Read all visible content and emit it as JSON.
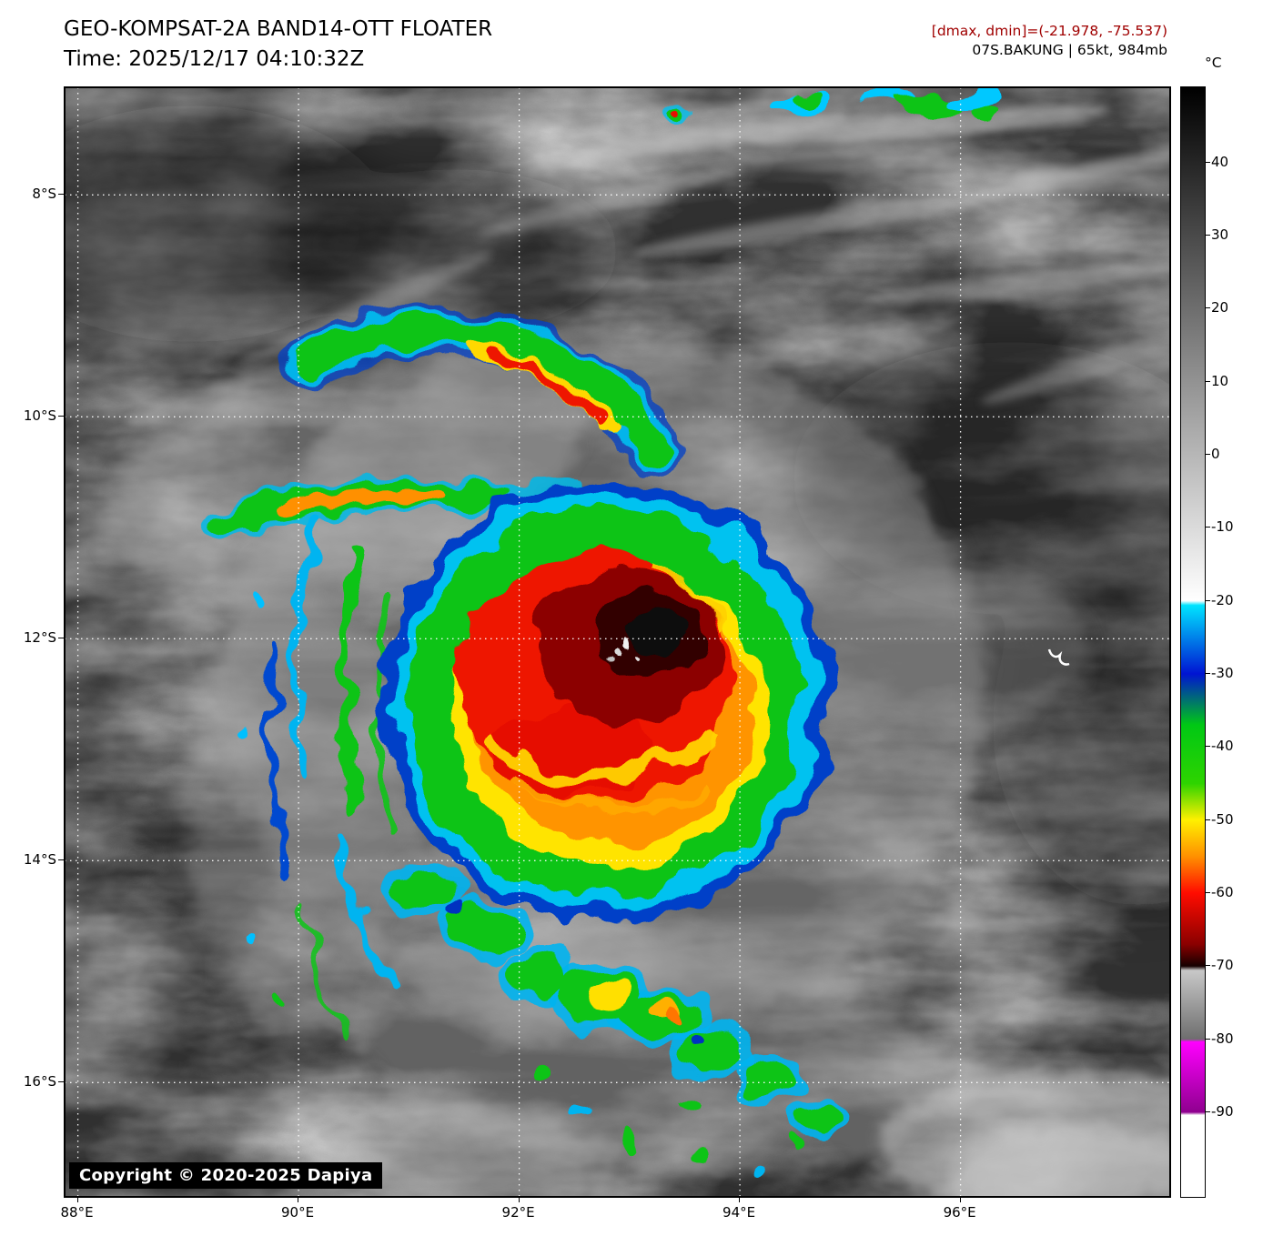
{
  "header": {
    "title": "GEO-KOMPSAT-2A BAND14-OTT FLOATER",
    "timestamp": "Time: 2025/12/17 04:10:32Z",
    "dmax_dmin": "[dmax, dmin]=(-21.978, -75.537)",
    "dmax_dmin_color": "#a00000",
    "storm_info": "07S.BAKUNG | 65kt, 984mb"
  },
  "colorbar": {
    "unit_label": "°C",
    "tick_values": [
      40,
      30,
      20,
      10,
      0,
      -10,
      -20,
      -30,
      -40,
      -50,
      -60,
      -70,
      -80,
      -90
    ],
    "value_max": 50.3,
    "value_min": -101.6,
    "gradient_stops": [
      {
        "value": 50.3,
        "color": "#000000"
      },
      {
        "value": -20,
        "color": "#ffffff"
      },
      {
        "value": -20.6,
        "color": "#00e4ff"
      },
      {
        "value": -30,
        "color": "#0014d2"
      },
      {
        "value": -37,
        "color": "#00c814"
      },
      {
        "value": -45,
        "color": "#2ed400"
      },
      {
        "value": -50,
        "color": "#fff000"
      },
      {
        "value": -55,
        "color": "#ff9000"
      },
      {
        "value": -60,
        "color": "#ff0c00"
      },
      {
        "value": -67,
        "color": "#8b0000"
      },
      {
        "value": -70,
        "color": "#160000"
      },
      {
        "value": -70.6,
        "color": "#c8c8c8"
      },
      {
        "value": -80,
        "color": "#6e6e6e"
      },
      {
        "value": -80.4,
        "color": "#ff00ff"
      },
      {
        "value": -90,
        "color": "#8f008f"
      },
      {
        "value": -90.4,
        "color": "#ffffff"
      },
      {
        "value": -101.6,
        "color": "#ffffff"
      }
    ]
  },
  "axes": {
    "lat_ticks": [
      {
        "value": 8,
        "label": "8°S"
      },
      {
        "value": 10,
        "label": "10°S"
      },
      {
        "value": 12,
        "label": "12°S"
      },
      {
        "value": 14,
        "label": "14°S"
      },
      {
        "value": 16,
        "label": "16°S"
      }
    ],
    "lon_ticks": [
      {
        "value": 88,
        "label": "88°E"
      },
      {
        "value": 90,
        "label": "90°E"
      },
      {
        "value": 92,
        "label": "92°E"
      },
      {
        "value": 94,
        "label": "94°E"
      },
      {
        "value": 96,
        "label": "96°E"
      }
    ]
  },
  "map": {
    "copyright": "Copyright © 2020-2025 Dapiya"
  }
}
